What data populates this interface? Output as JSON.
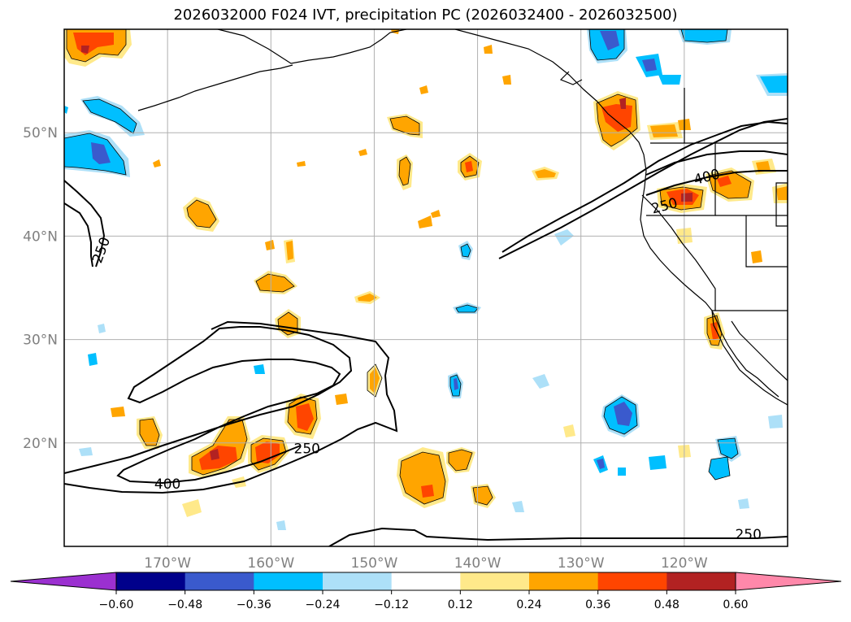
{
  "title": "2026032000 F024 IVT, precipitation PC (2026032400 - 2026032500)",
  "map": {
    "lon_range": [
      -180,
      -110
    ],
    "lat_range": [
      10,
      60
    ],
    "lat_ticks": [
      {
        "value": 50,
        "label": "50°N"
      },
      {
        "value": 40,
        "label": "40°N"
      },
      {
        "value": 30,
        "label": "30°N"
      },
      {
        "value": 20,
        "label": "20°N"
      }
    ],
    "lon_ticks": [
      {
        "value": -170,
        "label": "170°W"
      },
      {
        "value": -160,
        "label": "160°W"
      },
      {
        "value": -150,
        "label": "150°W"
      },
      {
        "value": -140,
        "label": "140°W"
      },
      {
        "value": -130,
        "label": "130°W"
      },
      {
        "value": -120,
        "label": "120°W"
      }
    ],
    "gridlines": true,
    "ivt_contour_labels": [
      {
        "text": "250",
        "lon": -176.0,
        "lat": 38.5,
        "rotate": -70
      },
      {
        "text": "400",
        "lon": -170.0,
        "lat": 15.6,
        "rotate": 0
      },
      {
        "text": "250",
        "lon": -156.5,
        "lat": 19.0,
        "rotate": 0
      },
      {
        "text": "250",
        "lon": -121.8,
        "lat": 42.5,
        "rotate": -15
      },
      {
        "text": "400",
        "lon": -117.7,
        "lat": 45.3,
        "rotate": -15
      },
      {
        "text": "250",
        "lon": -113.8,
        "lat": 10.7,
        "rotate": 0
      }
    ]
  },
  "colorbar": {
    "extend": "both",
    "levels": [
      -0.72,
      -0.6,
      -0.48,
      -0.36,
      -0.24,
      -0.12,
      0.12,
      0.24,
      0.36,
      0.48,
      0.6,
      0.72
    ],
    "colors": [
      "#9b30d0",
      "#00008b",
      "#3a5acd",
      "#00bfff",
      "#ade0f8",
      "#ffffff",
      "#ffe98a",
      "#ffa500",
      "#ff4500",
      "#b22222",
      "#ff88aa"
    ],
    "under_color": "#9b30d0",
    "over_color": "#ff88aa",
    "tick_labels": [
      "−0.60",
      "−0.48",
      "−0.36",
      "−0.24",
      "−0.12",
      "0.12",
      "0.24",
      "0.36",
      "0.48",
      "0.60"
    ]
  }
}
